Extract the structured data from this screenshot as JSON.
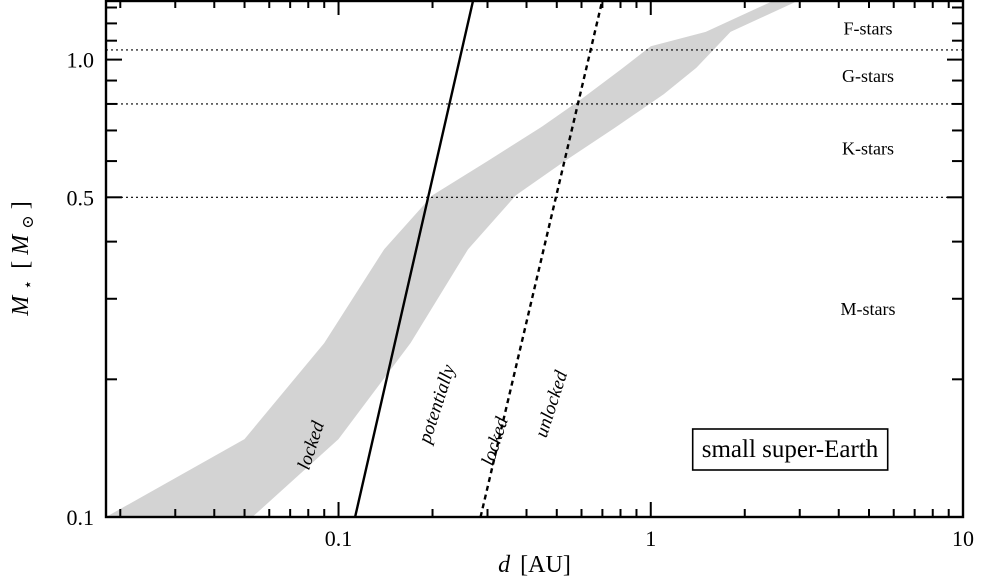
{
  "chart_data": {
    "type": "area",
    "xscale": "log",
    "yscale": "log",
    "xlim": [
      0.018,
      10
    ],
    "ylim": [
      0.1,
      1.35
    ],
    "x_ticks": [
      0.1,
      1,
      10
    ],
    "x_tick_labels": [
      "0.1",
      "1",
      "10"
    ],
    "y_ticks": [
      0.1,
      0.5,
      1.0
    ],
    "y_tick_labels": [
      "0.1",
      "0.5",
      "1.0"
    ],
    "xlabel_italic": "d",
    "xlabel_unit": "[AU]",
    "ylabel_main": "M",
    "ylabel_sub": "⋆",
    "ylabel_unit_open": "[",
    "ylabel_unit_italic": "M",
    "ylabel_unit_sub": "⊙",
    "ylabel_unit_close": "]",
    "grid": false,
    "habitable_zone": {
      "color": "#d3d3d3",
      "inner": [
        {
          "x": 0.018,
          "y": 0.1
        },
        {
          "x": 0.05,
          "y": 0.148
        },
        {
          "x": 0.09,
          "y": 0.24
        },
        {
          "x": 0.14,
          "y": 0.385
        },
        {
          "x": 0.2,
          "y": 0.505
        },
        {
          "x": 0.3,
          "y": 0.6
        },
        {
          "x": 0.45,
          "y": 0.715
        },
        {
          "x": 0.6,
          "y": 0.82
        },
        {
          "x": 0.8,
          "y": 0.95
        },
        {
          "x": 1.0,
          "y": 1.07
        },
        {
          "x": 1.5,
          "y": 1.15
        },
        {
          "x": 2.5,
          "y": 1.35
        }
      ],
      "outer": [
        {
          "x": 0.053,
          "y": 0.1
        },
        {
          "x": 0.1,
          "y": 0.148
        },
        {
          "x": 0.17,
          "y": 0.24
        },
        {
          "x": 0.26,
          "y": 0.385
        },
        {
          "x": 0.37,
          "y": 0.505
        },
        {
          "x": 0.53,
          "y": 0.6
        },
        {
          "x": 0.78,
          "y": 0.715
        },
        {
          "x": 1.1,
          "y": 0.84
        },
        {
          "x": 1.4,
          "y": 0.96
        },
        {
          "x": 1.8,
          "y": 1.15
        },
        {
          "x": 3.0,
          "y": 1.35
        }
      ]
    },
    "lines": [
      {
        "style": "solid",
        "points": [
          {
            "x": 0.113,
            "y": 0.1
          },
          {
            "x": 0.27,
            "y": 1.35
          }
        ]
      },
      {
        "style": "dashed",
        "points": [
          {
            "x": 0.285,
            "y": 0.1
          },
          {
            "x": 0.7,
            "y": 1.35
          }
        ]
      }
    ],
    "stellar_boundaries": [
      1.05,
      0.8,
      0.5
    ],
    "stellar_classes": [
      {
        "label": "F-stars",
        "y": 1.17
      },
      {
        "label": "G-stars",
        "y": 0.92
      },
      {
        "label": "K-stars",
        "y": 0.64
      },
      {
        "label": "M-stars",
        "y": 0.285
      }
    ],
    "region_labels": [
      {
        "text": "locked",
        "x": 0.085,
        "y": 0.142
      },
      {
        "text": "potentially",
        "x": 0.215,
        "y": 0.175
      },
      {
        "text": "locked",
        "x": 0.33,
        "y": 0.145
      },
      {
        "text": "unlocked",
        "x": 0.5,
        "y": 0.175
      }
    ],
    "legend": "small super-Earth",
    "legend_position": "bottom-right"
  }
}
